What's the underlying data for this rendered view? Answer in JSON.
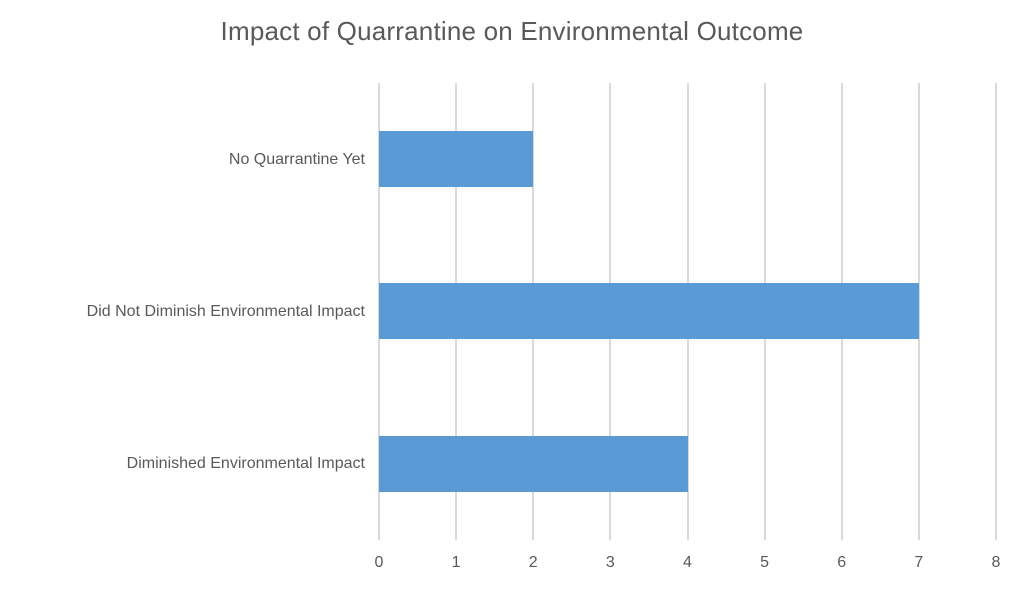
{
  "chart_data": {
    "type": "bar",
    "orientation": "horizontal",
    "title": "Impact of Quarrantine on Environmental Outcome",
    "categories": [
      "No Quarrantine Yet",
      "Did Not Diminish Environmental Impact",
      "Diminished Environmental Impact"
    ],
    "values": [
      2,
      7,
      4
    ],
    "xlabel": "",
    "ylabel": "",
    "xlim": [
      0,
      8
    ],
    "xticks": [
      0,
      1,
      2,
      3,
      4,
      5,
      6,
      7,
      8
    ],
    "grid": "vertical-only",
    "legend": "none",
    "colors": {
      "bar": "#5B9BD5",
      "gridline": "#D9D9D9",
      "title": "#595959",
      "label": "#595959",
      "tick": "#595959",
      "background": "#FFFFFF"
    }
  }
}
